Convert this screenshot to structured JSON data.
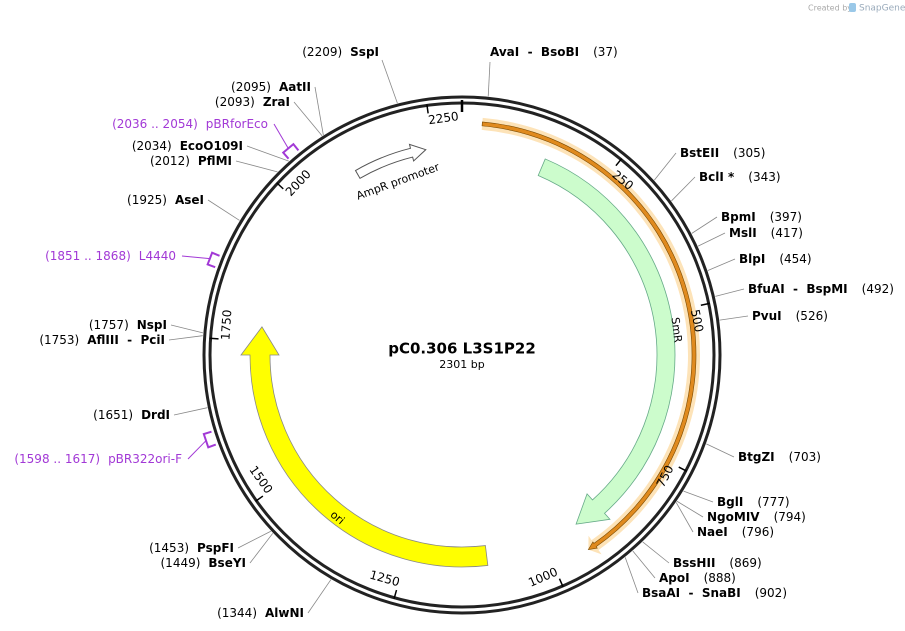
{
  "header": {
    "created_by": "Created by",
    "brand": "SnapGene"
  },
  "map": {
    "name": "pC0.306 L3S1P22",
    "length": "2301 bp",
    "ticks": [
      "250",
      "500",
      "750",
      "1000",
      "1250",
      "1500",
      "1750",
      "2000",
      "2250"
    ],
    "features": [
      {
        "label": "SmR"
      },
      {
        "label": "ori"
      },
      {
        "label": "AmpR promoter"
      }
    ],
    "sites": [
      {
        "name": "AvaI  -  BsoBI",
        "position": "(37)"
      },
      {
        "name": "BstEII",
        "position": "(305)"
      },
      {
        "name": "BclI *",
        "position": "(343)"
      },
      {
        "name": "BpmI",
        "position": "(397)"
      },
      {
        "name": "MslI",
        "position": "(417)"
      },
      {
        "name": "BlpI",
        "position": "(454)"
      },
      {
        "name": "BfuAI  -  BspMI",
        "position": "(492)"
      },
      {
        "name": "PvuI",
        "position": "(526)"
      },
      {
        "name": "BtgZI",
        "position": "(703)"
      },
      {
        "name": "BglI",
        "position": "(777)"
      },
      {
        "name": "NgoMIV",
        "position": "(794)"
      },
      {
        "name": "NaeI",
        "position": "(796)"
      },
      {
        "name": "BssHII",
        "position": "(869)"
      },
      {
        "name": "ApoI",
        "position": "(888)"
      },
      {
        "name": "BsaAI  -  SnaBI",
        "position": "(902)"
      },
      {
        "name": "SspI",
        "position": "(2209)"
      },
      {
        "name": "AatII",
        "position": "(2095)"
      },
      {
        "name": "ZraI",
        "position": "(2093)"
      },
      {
        "name": "EcoO109I",
        "position": "(2034)"
      },
      {
        "name": "PflMI",
        "position": "(2012)"
      },
      {
        "name": "AseI",
        "position": "(1925)"
      },
      {
        "name": "NspI",
        "position": "(1757)"
      },
      {
        "name": "AflIII  -  PciI",
        "position": "(1753)"
      },
      {
        "name": "DrdI",
        "position": "(1651)"
      },
      {
        "name": "PspFI",
        "position": "(1453)"
      },
      {
        "name": "BseYI",
        "position": "(1449)"
      },
      {
        "name": "AlwNI",
        "position": "(1344)"
      }
    ],
    "primers": [
      {
        "range": "(2036 .. 2054)",
        "name": "pBRforEco"
      },
      {
        "range": "(1851 .. 1868)",
        "name": "L4440"
      },
      {
        "range": "(1598 .. 1617)",
        "name": "pBR322ori-F"
      }
    ]
  }
}
